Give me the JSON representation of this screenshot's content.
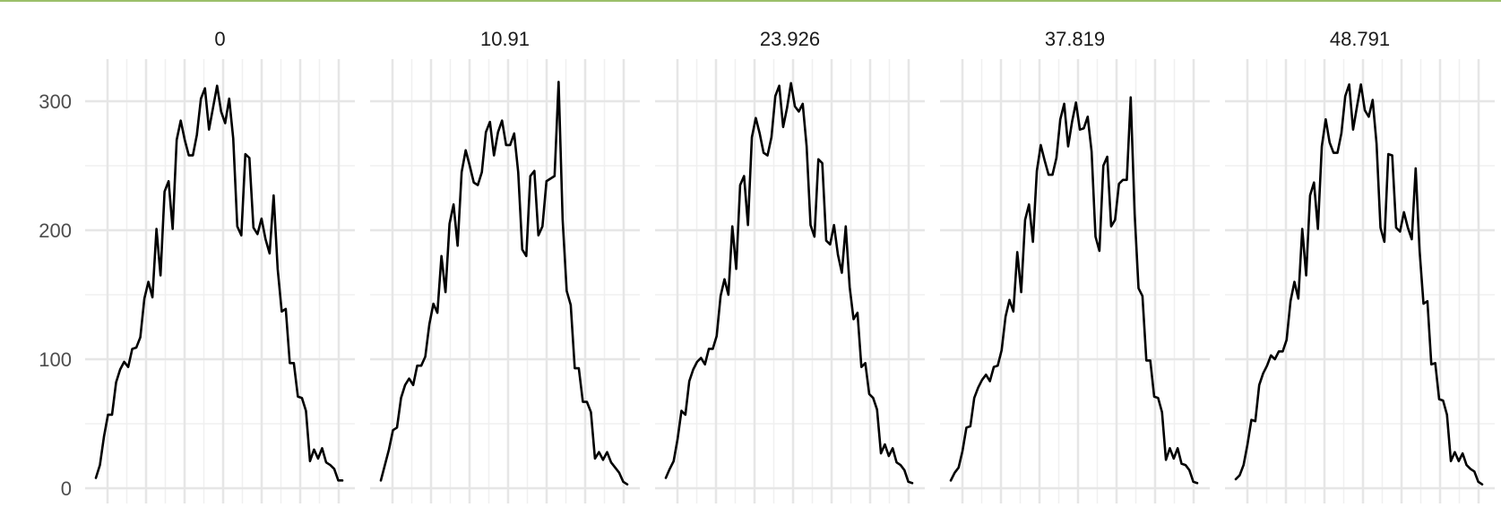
{
  "chart_data": {
    "type": "line",
    "panels": [
      {
        "title": "0",
        "y": [
          8,
          18,
          40,
          57,
          57,
          82,
          92,
          98,
          94,
          108,
          109,
          117,
          147,
          160,
          148,
          201,
          165,
          230,
          238,
          201,
          270,
          285,
          270,
          258,
          258,
          274,
          302,
          310,
          278,
          295,
          312,
          292,
          283,
          302,
          271,
          203,
          196,
          259,
          256,
          202,
          197,
          209,
          193,
          182,
          227,
          170,
          137,
          139,
          97,
          97,
          71,
          70,
          60,
          21,
          30,
          23,
          31,
          20,
          18,
          15,
          6,
          6
        ]
      },
      {
        "title": "10.91",
        "y": [
          6,
          18,
          30,
          45,
          47,
          70,
          80,
          85,
          80,
          95,
          95,
          102,
          127,
          143,
          136,
          180,
          152,
          205,
          220,
          188,
          245,
          262,
          250,
          237,
          235,
          245,
          276,
          284,
          258,
          276,
          285,
          266,
          266,
          275,
          245,
          185,
          180,
          242,
          246,
          196,
          203,
          238,
          240,
          242,
          315,
          208,
          153,
          142,
          93,
          93,
          67,
          67,
          59,
          23,
          28,
          22,
          28,
          20,
          16,
          12,
          5,
          3
        ]
      },
      {
        "title": "23.926",
        "y": [
          8,
          15,
          21,
          38,
          60,
          57,
          83,
          92,
          98,
          101,
          96,
          108,
          108,
          118,
          149,
          162,
          150,
          203,
          170,
          235,
          242,
          204,
          272,
          287,
          275,
          260,
          258,
          272,
          304,
          312,
          280,
          295,
          314,
          296,
          292,
          298,
          265,
          204,
          195,
          255,
          252,
          192,
          189,
          204,
          181,
          167,
          203,
          156,
          131,
          136,
          94,
          97,
          73,
          70,
          61,
          27,
          34,
          25,
          31,
          20,
          18,
          14,
          5,
          4
        ]
      },
      {
        "title": "37.819",
        "y": [
          6,
          12,
          16,
          29,
          47,
          48,
          70,
          78,
          84,
          88,
          83,
          94,
          95,
          107,
          133,
          146,
          137,
          183,
          152,
          208,
          220,
          191,
          246,
          266,
          254,
          243,
          243,
          256,
          286,
          298,
          265,
          284,
          299,
          278,
          279,
          288,
          261,
          195,
          184,
          250,
          257,
          203,
          208,
          236,
          239,
          239,
          303,
          213,
          155,
          149,
          99,
          99,
          71,
          70,
          59,
          22,
          31,
          23,
          31,
          19,
          18,
          14,
          5,
          4
        ]
      },
      {
        "title": "48.791",
        "y": [
          7,
          10,
          18,
          34,
          53,
          52,
          80,
          89,
          95,
          103,
          100,
          106,
          106,
          115,
          145,
          160,
          147,
          201,
          165,
          227,
          237,
          201,
          265,
          286,
          268,
          260,
          260,
          275,
          304,
          313,
          278,
          296,
          313,
          293,
          288,
          301,
          267,
          202,
          191,
          259,
          258,
          202,
          199,
          214,
          202,
          193,
          248,
          184,
          143,
          145,
          96,
          97,
          69,
          68,
          57,
          21,
          28,
          21,
          27,
          18,
          15,
          13,
          5,
          3
        ]
      }
    ],
    "ylim": [
      0,
      325
    ],
    "yticks": [
      0,
      100,
      200,
      300
    ],
    "x_tick_labels_shown": false,
    "grid": true,
    "series_color": "#000000"
  }
}
